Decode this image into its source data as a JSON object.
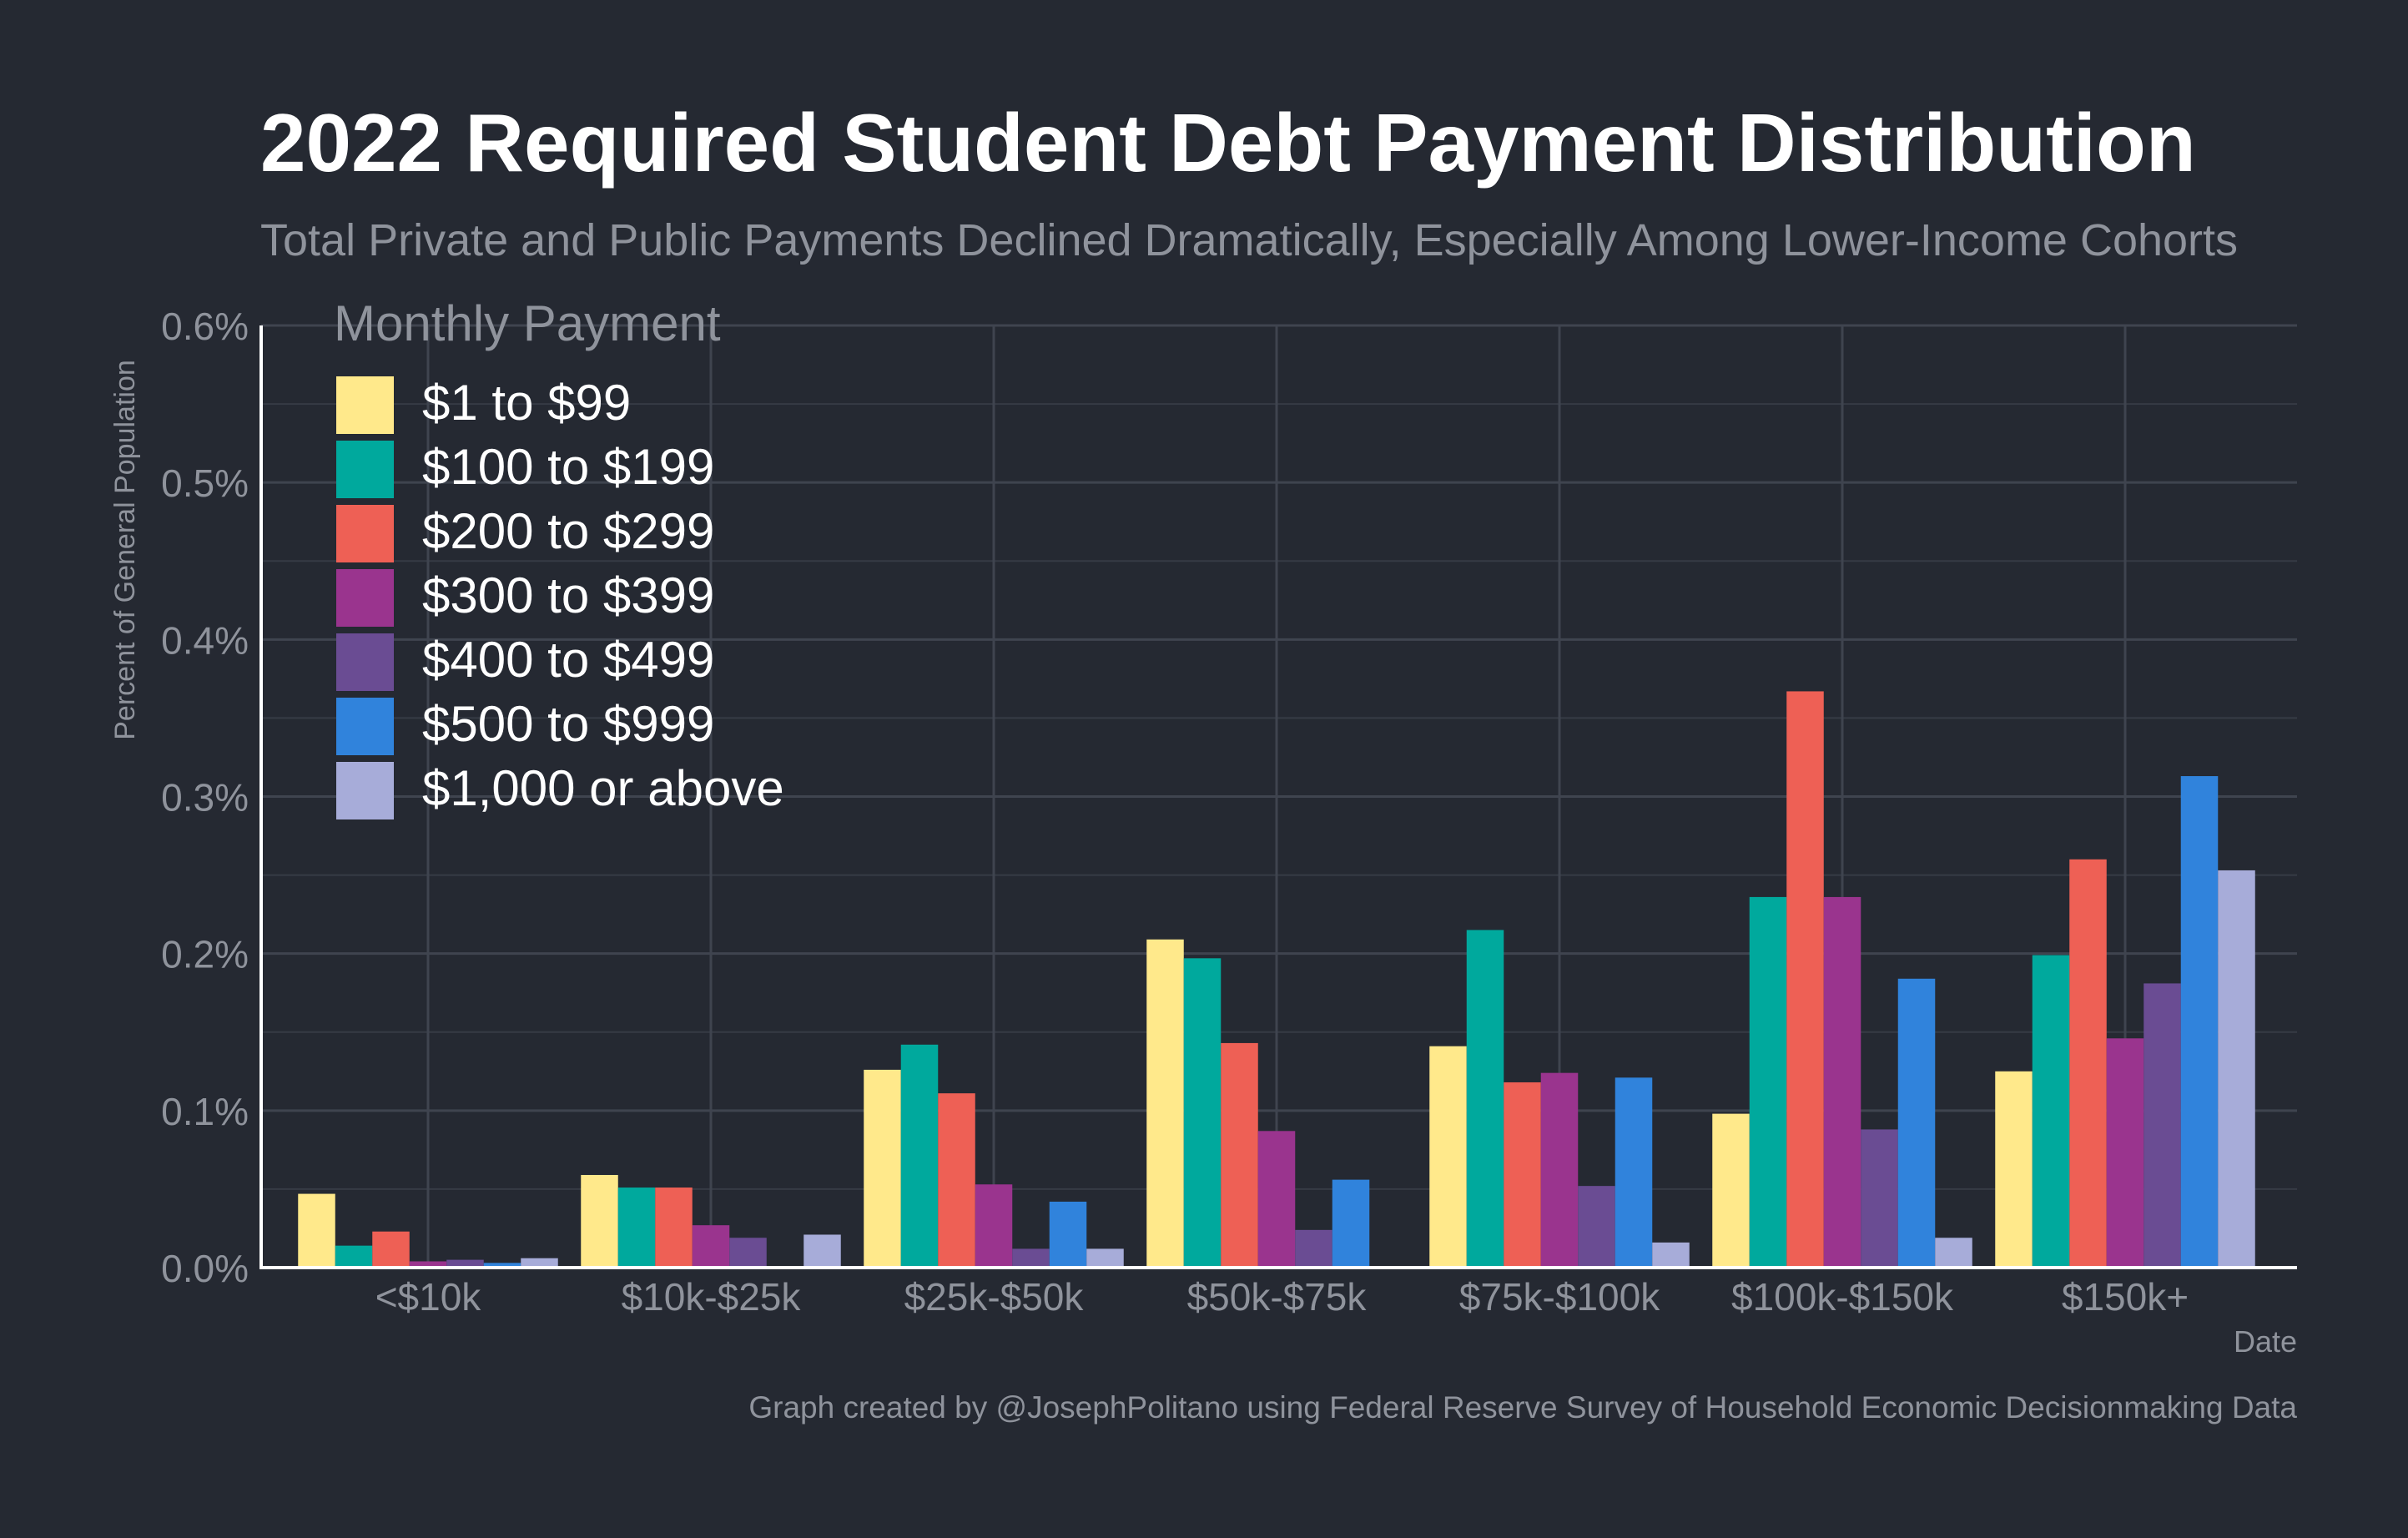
{
  "chart_data": {
    "type": "bar",
    "title": "2022 Required Student Debt Payment Distribution",
    "subtitle": "Total Private and Public Payments Declined Dramatically, Especially Among Lower-Income Cohorts",
    "xlabel": "Date",
    "ylabel": "Percent of General Population",
    "caption": "Graph created by @JosephPolitano using Federal Reserve Survey of Household Economic Decisionmaking Data",
    "ylim": [
      0,
      0.6
    ],
    "yticks": [
      0.0,
      0.1,
      0.2,
      0.3,
      0.4,
      0.5,
      0.6
    ],
    "ytick_labels": [
      "0.0%",
      "0.1%",
      "0.2%",
      "0.3%",
      "0.4%",
      "0.5%",
      "0.6%"
    ],
    "grid": true,
    "legend": {
      "title": "Monthly Payment",
      "placement": "top-left"
    },
    "categories": [
      "<$10k",
      "$10k-$25k",
      "$25k-$50k",
      "$50k-$75k",
      "$75k-$100k",
      "$100k-$150k",
      "$150k+"
    ],
    "series": [
      {
        "name": "$1 to $99",
        "color": "#ffe98b",
        "values": [
          0.047,
          0.059,
          0.126,
          0.209,
          0.141,
          0.098,
          0.125
        ]
      },
      {
        "name": "$100 to $199",
        "color": "#00a99d",
        "values": [
          0.014,
          0.051,
          0.142,
          0.197,
          0.215,
          0.236,
          0.199
        ]
      },
      {
        "name": "$200 to $299",
        "color": "#ee6055",
        "values": [
          0.023,
          0.051,
          0.111,
          0.143,
          0.118,
          0.367,
          0.26
        ]
      },
      {
        "name": "$300 to $399",
        "color": "#9a348e",
        "values": [
          0.004,
          0.027,
          0.053,
          0.087,
          0.124,
          0.236,
          0.146
        ]
      },
      {
        "name": "$400 to $499",
        "color": "#6a4c93",
        "values": [
          0.005,
          0.019,
          0.012,
          0.024,
          0.052,
          0.088,
          0.181
        ]
      },
      {
        "name": "$500 to $999",
        "color": "#3083dc",
        "values": [
          0.003,
          0.0,
          0.042,
          0.056,
          0.121,
          0.184,
          0.313
        ]
      },
      {
        "name": "$1,000 or above",
        "color": "#a7acd9",
        "values": [
          0.006,
          0.021,
          0.012,
          0.0,
          0.016,
          0.019,
          0.253
        ]
      }
    ]
  }
}
